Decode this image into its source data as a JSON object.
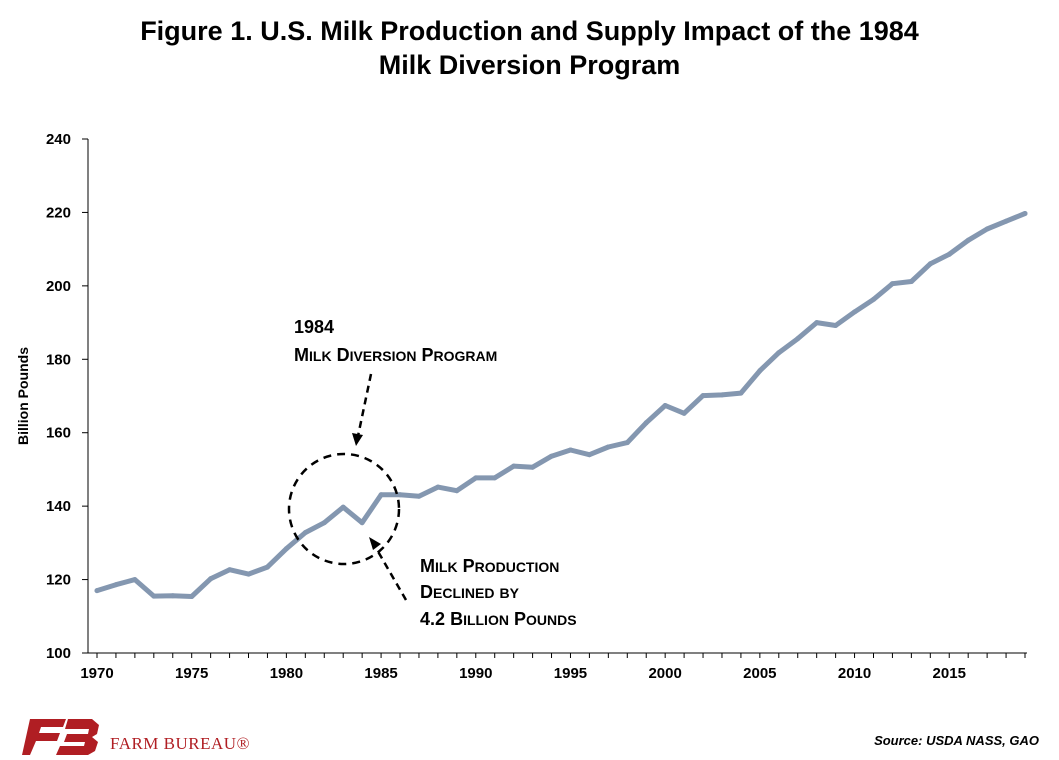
{
  "title_line1": "Figure 1. U.S. Milk Production and Supply Impact of the 1984",
  "title_line2": "Milk Diversion Program",
  "source": "Source: USDA NASS, GAO",
  "logo_text": "FARM BUREAU®",
  "colors": {
    "line": "#8497b0",
    "text": "#000000",
    "brand": "#b01e23"
  },
  "annotation_program": {
    "year": "1984",
    "label": "Milk Diversion Program"
  },
  "annotation_decline": {
    "line1": "Milk Production",
    "line2": "Declined by",
    "line3": "4.2 Billion Pounds"
  },
  "chart_data": {
    "type": "line",
    "title": "Figure 1. U.S. Milk Production and Supply Impact of the 1984 Milk Diversion Program",
    "xlabel": "",
    "ylabel": "Billion Pounds",
    "ylim": [
      100,
      240
    ],
    "yticks": [
      100,
      120,
      140,
      160,
      180,
      200,
      220,
      240
    ],
    "xlim": [
      1970,
      2019
    ],
    "xticks": [
      1970,
      1975,
      1980,
      1985,
      1990,
      1995,
      2000,
      2005,
      2010,
      2015
    ],
    "grid": false,
    "legend": "none",
    "series": [
      {
        "x": [
          1970,
          1971,
          1972,
          1973,
          1974,
          1975,
          1976,
          1977,
          1978,
          1979,
          1980,
          1981,
          1982,
          1983,
          1984,
          1985,
          1986,
          1987,
          1988,
          1989,
          1990,
          1991,
          1992,
          1993,
          1994,
          1995,
          1996,
          1997,
          1998,
          1999,
          2000,
          2001,
          2002,
          2003,
          2004,
          2005,
          2006,
          2007,
          2008,
          2009,
          2010,
          2011,
          2012,
          2013,
          2014,
          2015,
          2016,
          2017,
          2018,
          2019
        ],
        "values": [
          117.0,
          118.6,
          120.0,
          115.5,
          115.6,
          115.4,
          120.2,
          122.7,
          121.5,
          123.4,
          128.4,
          132.8,
          135.5,
          139.7,
          135.5,
          143.1,
          143.1,
          142.7,
          145.2,
          144.2,
          147.7,
          147.7,
          150.9,
          150.6,
          153.6,
          155.3,
          154.0,
          156.1,
          157.3,
          162.7,
          167.4,
          165.3,
          170.1,
          170.3,
          170.8,
          176.9,
          181.8,
          185.6,
          190.0,
          189.2,
          192.9,
          196.3,
          200.6,
          201.2,
          206.0,
          208.6,
          212.4,
          215.5,
          217.6,
          219.7
        ]
      }
    ]
  }
}
